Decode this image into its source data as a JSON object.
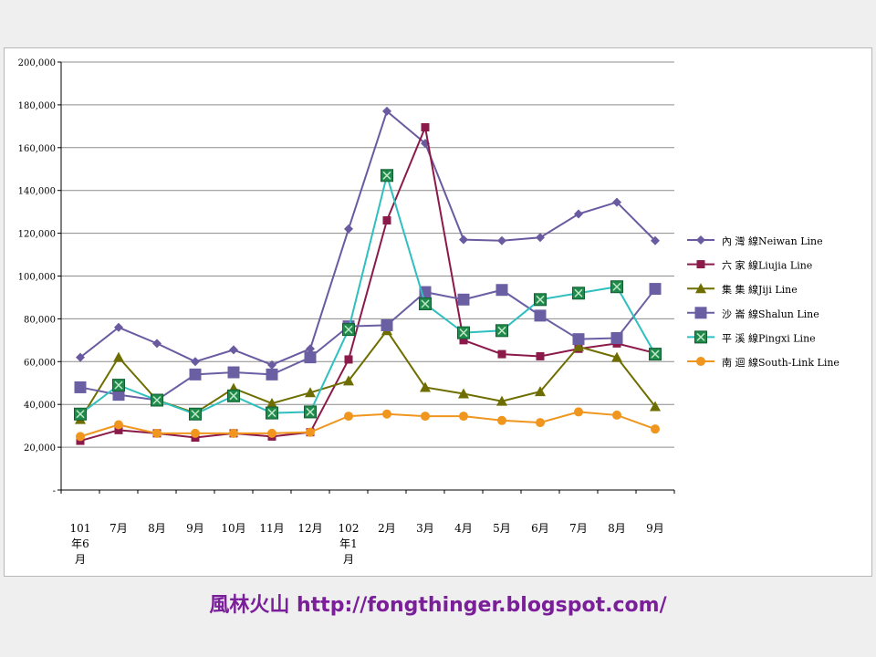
{
  "chart_data": {
    "type": "line",
    "categories": [
      [
        "101",
        "年6",
        "月"
      ],
      [
        "7月"
      ],
      [
        "8月"
      ],
      [
        "9月"
      ],
      [
        "10月"
      ],
      [
        "11月"
      ],
      [
        "12月"
      ],
      [
        "102",
        "年1",
        "月"
      ],
      [
        "2月"
      ],
      [
        "3月"
      ],
      [
        "4月"
      ],
      [
        "5月"
      ],
      [
        "6月"
      ],
      [
        "7月"
      ],
      [
        "8月"
      ],
      [
        "9月"
      ]
    ],
    "y_ticks": [
      "-",
      "20,000",
      "40,000",
      "60,000",
      "80,000",
      "100,000",
      "120,000",
      "140,000",
      "160,000",
      "180,000",
      "200,000"
    ],
    "ylim": [
      0,
      200000
    ],
    "grid": "horizontal",
    "legend_position": "right",
    "series": [
      {
        "name": "內 灣 線Neiwan Line",
        "color": "#6a5aa0",
        "marker": "diamond",
        "values": [
          62000,
          76000,
          68500,
          60000,
          65500,
          58500,
          66000,
          122000,
          177000,
          162000,
          117000,
          116500,
          118000,
          129000,
          134500,
          116500
        ]
      },
      {
        "name": "六 家 線Liujia Line",
        "color": "#8b1a4a",
        "marker": "square",
        "values": [
          23000,
          28000,
          26500,
          24500,
          26500,
          25000,
          27000,
          61000,
          126000,
          169500,
          70000,
          63500,
          62500,
          66000,
          68500,
          64000
        ]
      },
      {
        "name": "集 集 線Jiji Line",
        "color": "#6e6e00",
        "marker": "triangle",
        "values": [
          33000,
          62000,
          42000,
          36000,
          47500,
          40500,
          45500,
          51000,
          74500,
          48000,
          45000,
          41500,
          46000,
          67000,
          62000,
          39000
        ]
      },
      {
        "name": "沙 崙 線Shalun Line",
        "color": "#6b5fa3",
        "marker": "bigsquare",
        "values": [
          48000,
          44500,
          42000,
          54000,
          55000,
          54000,
          62000,
          76500,
          77000,
          92500,
          89000,
          93500,
          81500,
          70500,
          71000,
          94000
        ]
      },
      {
        "name": "平 溪 線Pingxi Line",
        "color": "#2fbfbf",
        "marker": "xsquare",
        "values": [
          35500,
          49000,
          42000,
          35500,
          44000,
          36000,
          36500,
          75000,
          147000,
          87000,
          73500,
          74500,
          89000,
          92000,
          95000,
          63500
        ]
      },
      {
        "name": "南 迴 線South-Link Line",
        "color": "#f0951e",
        "marker": "circle",
        "values": [
          25000,
          30500,
          26500,
          26500,
          26500,
          26500,
          27000,
          34500,
          35500,
          34500,
          34500,
          32500,
          31500,
          36500,
          35000,
          28500
        ]
      }
    ]
  },
  "footer": {
    "text": "風林火山 http://fongthinger.blogspot.com/"
  }
}
